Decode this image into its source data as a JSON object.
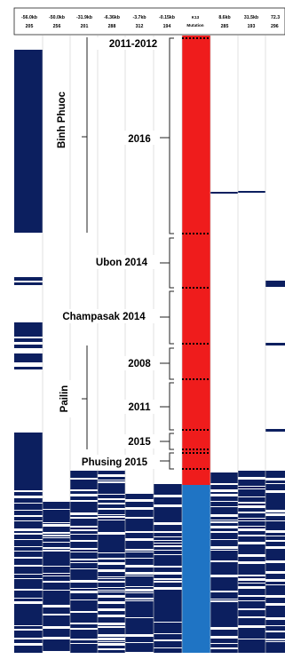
{
  "columns": [
    {
      "distance": "-56.0kb",
      "position": "205"
    },
    {
      "distance": "-50.0kb",
      "position": "256"
    },
    {
      "distance": "-31.9kb",
      "position": "201"
    },
    {
      "distance": "-6.36kb",
      "position": "288"
    },
    {
      "distance": "-3.7kb",
      "position": "312"
    },
    {
      "distance": "-0.15kb",
      "position": "194"
    },
    {
      "distance": "K13",
      "position": "Mutation"
    },
    {
      "distance": "8.6kb",
      "position": "285"
    },
    {
      "distance": "31.5kb",
      "position": "193"
    },
    {
      "distance": "72.3",
      "position": "296"
    }
  ],
  "groups": {
    "binh_phuoc": "Binh Phuoc",
    "pailin": "Pailin"
  },
  "row_labels": [
    {
      "key": "year-2011-2012",
      "text": "2011-2012"
    },
    {
      "key": "year-2016",
      "text": "2016"
    },
    {
      "key": "ubon-2014",
      "text": "Ubon 2014"
    },
    {
      "key": "champasak-2014",
      "text": "Champasak 2014"
    },
    {
      "key": "pailin-2008",
      "text": "2008"
    },
    {
      "key": "pailin-2011",
      "text": "2011"
    },
    {
      "key": "pailin-2015",
      "text": "2015"
    },
    {
      "key": "phusing-2015",
      "text": "Phusing 2015"
    }
  ],
  "colors": {
    "haplotype": "#0c1f5f",
    "mutant": "#ef1c1c",
    "wildtype": "#1f74c4",
    "background": "#ffffff",
    "separator": "#000000"
  }
}
